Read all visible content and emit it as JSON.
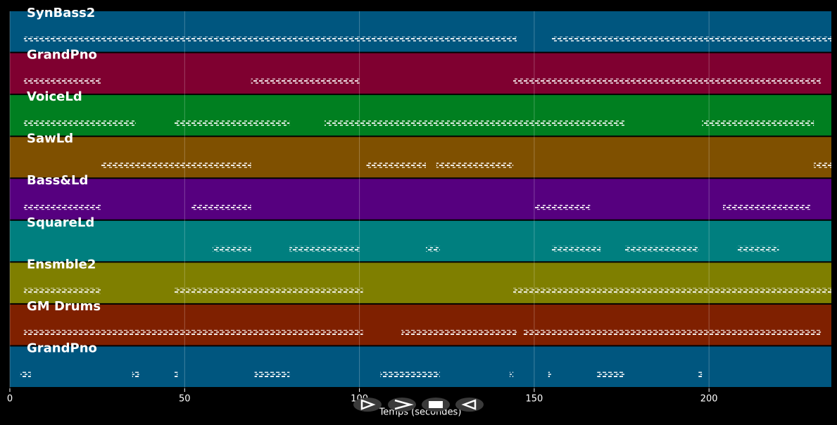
{
  "chart_data": {
    "type": "pianoroll",
    "x_label": "Temps (secondes)",
    "xlim": [
      0,
      235
    ],
    "xticks": [
      0,
      50,
      100,
      150,
      200
    ],
    "grid": true,
    "series": [
      {
        "name": "SynBass2",
        "color": "#00567f",
        "values": [
          [
            4,
            26
          ],
          [
            26,
            105
          ],
          [
            105,
            145
          ],
          [
            155,
            235
          ]
        ]
      },
      {
        "name": "GrandPno",
        "color": "#7f0030",
        "values": [
          [
            4,
            26
          ],
          [
            69,
            100
          ],
          [
            144,
            232
          ]
        ]
      },
      {
        "name": "VoiceLd",
        "color": "#007f20",
        "values": [
          [
            4,
            36
          ],
          [
            47,
            80
          ],
          [
            90,
            176
          ],
          [
            198,
            230
          ]
        ]
      },
      {
        "name": "SawLd",
        "color": "#7f5000",
        "values": [
          [
            26,
            69
          ],
          [
            102,
            119
          ],
          [
            122,
            144
          ],
          [
            230,
            235
          ]
        ]
      },
      {
        "name": "Bass&Ld",
        "color": "#56007f",
        "values": [
          [
            4,
            26
          ],
          [
            52,
            69
          ],
          [
            150,
            166
          ],
          [
            204,
            229
          ]
        ]
      },
      {
        "name": "SquareLd",
        "color": "#007f7f",
        "values": [
          [
            58,
            69
          ],
          [
            80,
            100
          ],
          [
            119,
            123
          ],
          [
            155,
            169
          ],
          [
            176,
            197
          ],
          [
            208,
            220
          ]
        ]
      },
      {
        "name": "Ensmble2",
        "color": "#7f7f00",
        "values": [
          [
            4,
            26
          ],
          [
            47,
            101
          ],
          [
            144,
            235
          ]
        ]
      },
      {
        "name": "GM Drums",
        "color": "#7f2000",
        "values": [
          [
            4,
            26
          ],
          [
            26,
            101
          ],
          [
            112,
            145
          ],
          [
            147,
            232
          ]
        ]
      },
      {
        "name": "GrandPno",
        "color": "#00567f",
        "values": [
          [
            3,
            6
          ],
          [
            35,
            37
          ],
          [
            47,
            48
          ],
          [
            70,
            80
          ],
          [
            106,
            123
          ],
          [
            143,
            144
          ],
          [
            154,
            155
          ],
          [
            168,
            176
          ],
          [
            197,
            198
          ]
        ]
      }
    ]
  }
}
